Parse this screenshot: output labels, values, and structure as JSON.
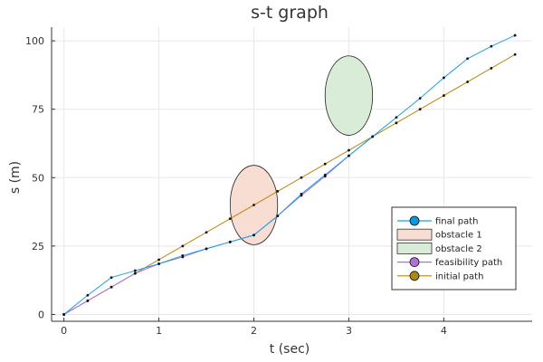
{
  "chart_data": {
    "type": "line",
    "title": "s-t graph",
    "xlabel": "t (sec)",
    "ylabel": "s (m)",
    "xlim": [
      -0.13,
      4.93
    ],
    "ylim": [
      -2.5,
      105
    ],
    "xticks": [
      0,
      1,
      2,
      3,
      4
    ],
    "yticks": [
      0,
      25,
      50,
      75,
      100
    ],
    "grid": true,
    "legend_position": "bottom-right",
    "series": [
      {
        "name": "final path",
        "color": "#1f9fe0",
        "marker": "dot",
        "x": [
          0,
          0.25,
          0.5,
          0.75,
          1.0,
          1.25,
          1.5,
          1.75,
          2.0,
          2.25,
          2.5,
          2.75,
          3.0,
          3.25,
          3.5,
          3.75,
          4.0,
          4.25,
          4.5,
          4.75
        ],
        "y": [
          0,
          7,
          13.5,
          16,
          18.5,
          21.5,
          24,
          26.5,
          29,
          36,
          44,
          51,
          58,
          65,
          72,
          79,
          86.5,
          93.5,
          98,
          102
        ]
      },
      {
        "name": "feasibility path",
        "color": "#a070e8",
        "marker": "dot",
        "x": [
          0,
          0.25,
          0.5,
          0.75,
          1.0,
          1.25,
          1.5,
          1.75,
          2.0,
          2.25,
          2.5,
          2.75,
          3.0,
          3.25
        ],
        "y": [
          0,
          5,
          10,
          15,
          18.5,
          21,
          24,
          26.5,
          29,
          36,
          43.5,
          50.5,
          58,
          65
        ]
      },
      {
        "name": "initial path",
        "color": "#b8860b",
        "marker": "dot",
        "x": [
          0,
          0.25,
          0.5,
          0.75,
          1.0,
          1.25,
          1.5,
          1.75,
          2.0,
          2.25,
          2.5,
          2.75,
          3.0,
          3.25,
          3.5,
          3.75,
          4.0,
          4.25,
          4.5,
          4.75
        ],
        "y": [
          0,
          5,
          10,
          15,
          20,
          25,
          30,
          35,
          40,
          45,
          50,
          55,
          60,
          65,
          70,
          75,
          80,
          85,
          90,
          95
        ]
      }
    ],
    "obstacles": [
      {
        "name": "obstacle 1",
        "center": [
          2.0,
          40
        ],
        "radius_x": 0.25,
        "radius_y": 14.5,
        "fill": "#f8ddd2",
        "stroke": "#222222"
      },
      {
        "name": "obstacle 2",
        "center": [
          3.0,
          80
        ],
        "radius_x": 0.25,
        "radius_y": 14.5,
        "fill": "#d8ecd8",
        "stroke": "#222222"
      }
    ],
    "legend": [
      {
        "label": "final path",
        "kind": "line-marker",
        "color": "#1f9fe0",
        "marker_fill": "#0a99e0"
      },
      {
        "label": "obstacle 1",
        "kind": "patch",
        "color": "#f8ddd2"
      },
      {
        "label": "obstacle 2",
        "kind": "patch",
        "color": "#d8ecd8"
      },
      {
        "label": "feasibility path",
        "kind": "line-marker",
        "color": "#a070e8",
        "marker_fill": "#b070d8"
      },
      {
        "label": "initial path",
        "kind": "line-marker",
        "color": "#b8860b",
        "marker_fill": "#a88a14"
      }
    ]
  }
}
